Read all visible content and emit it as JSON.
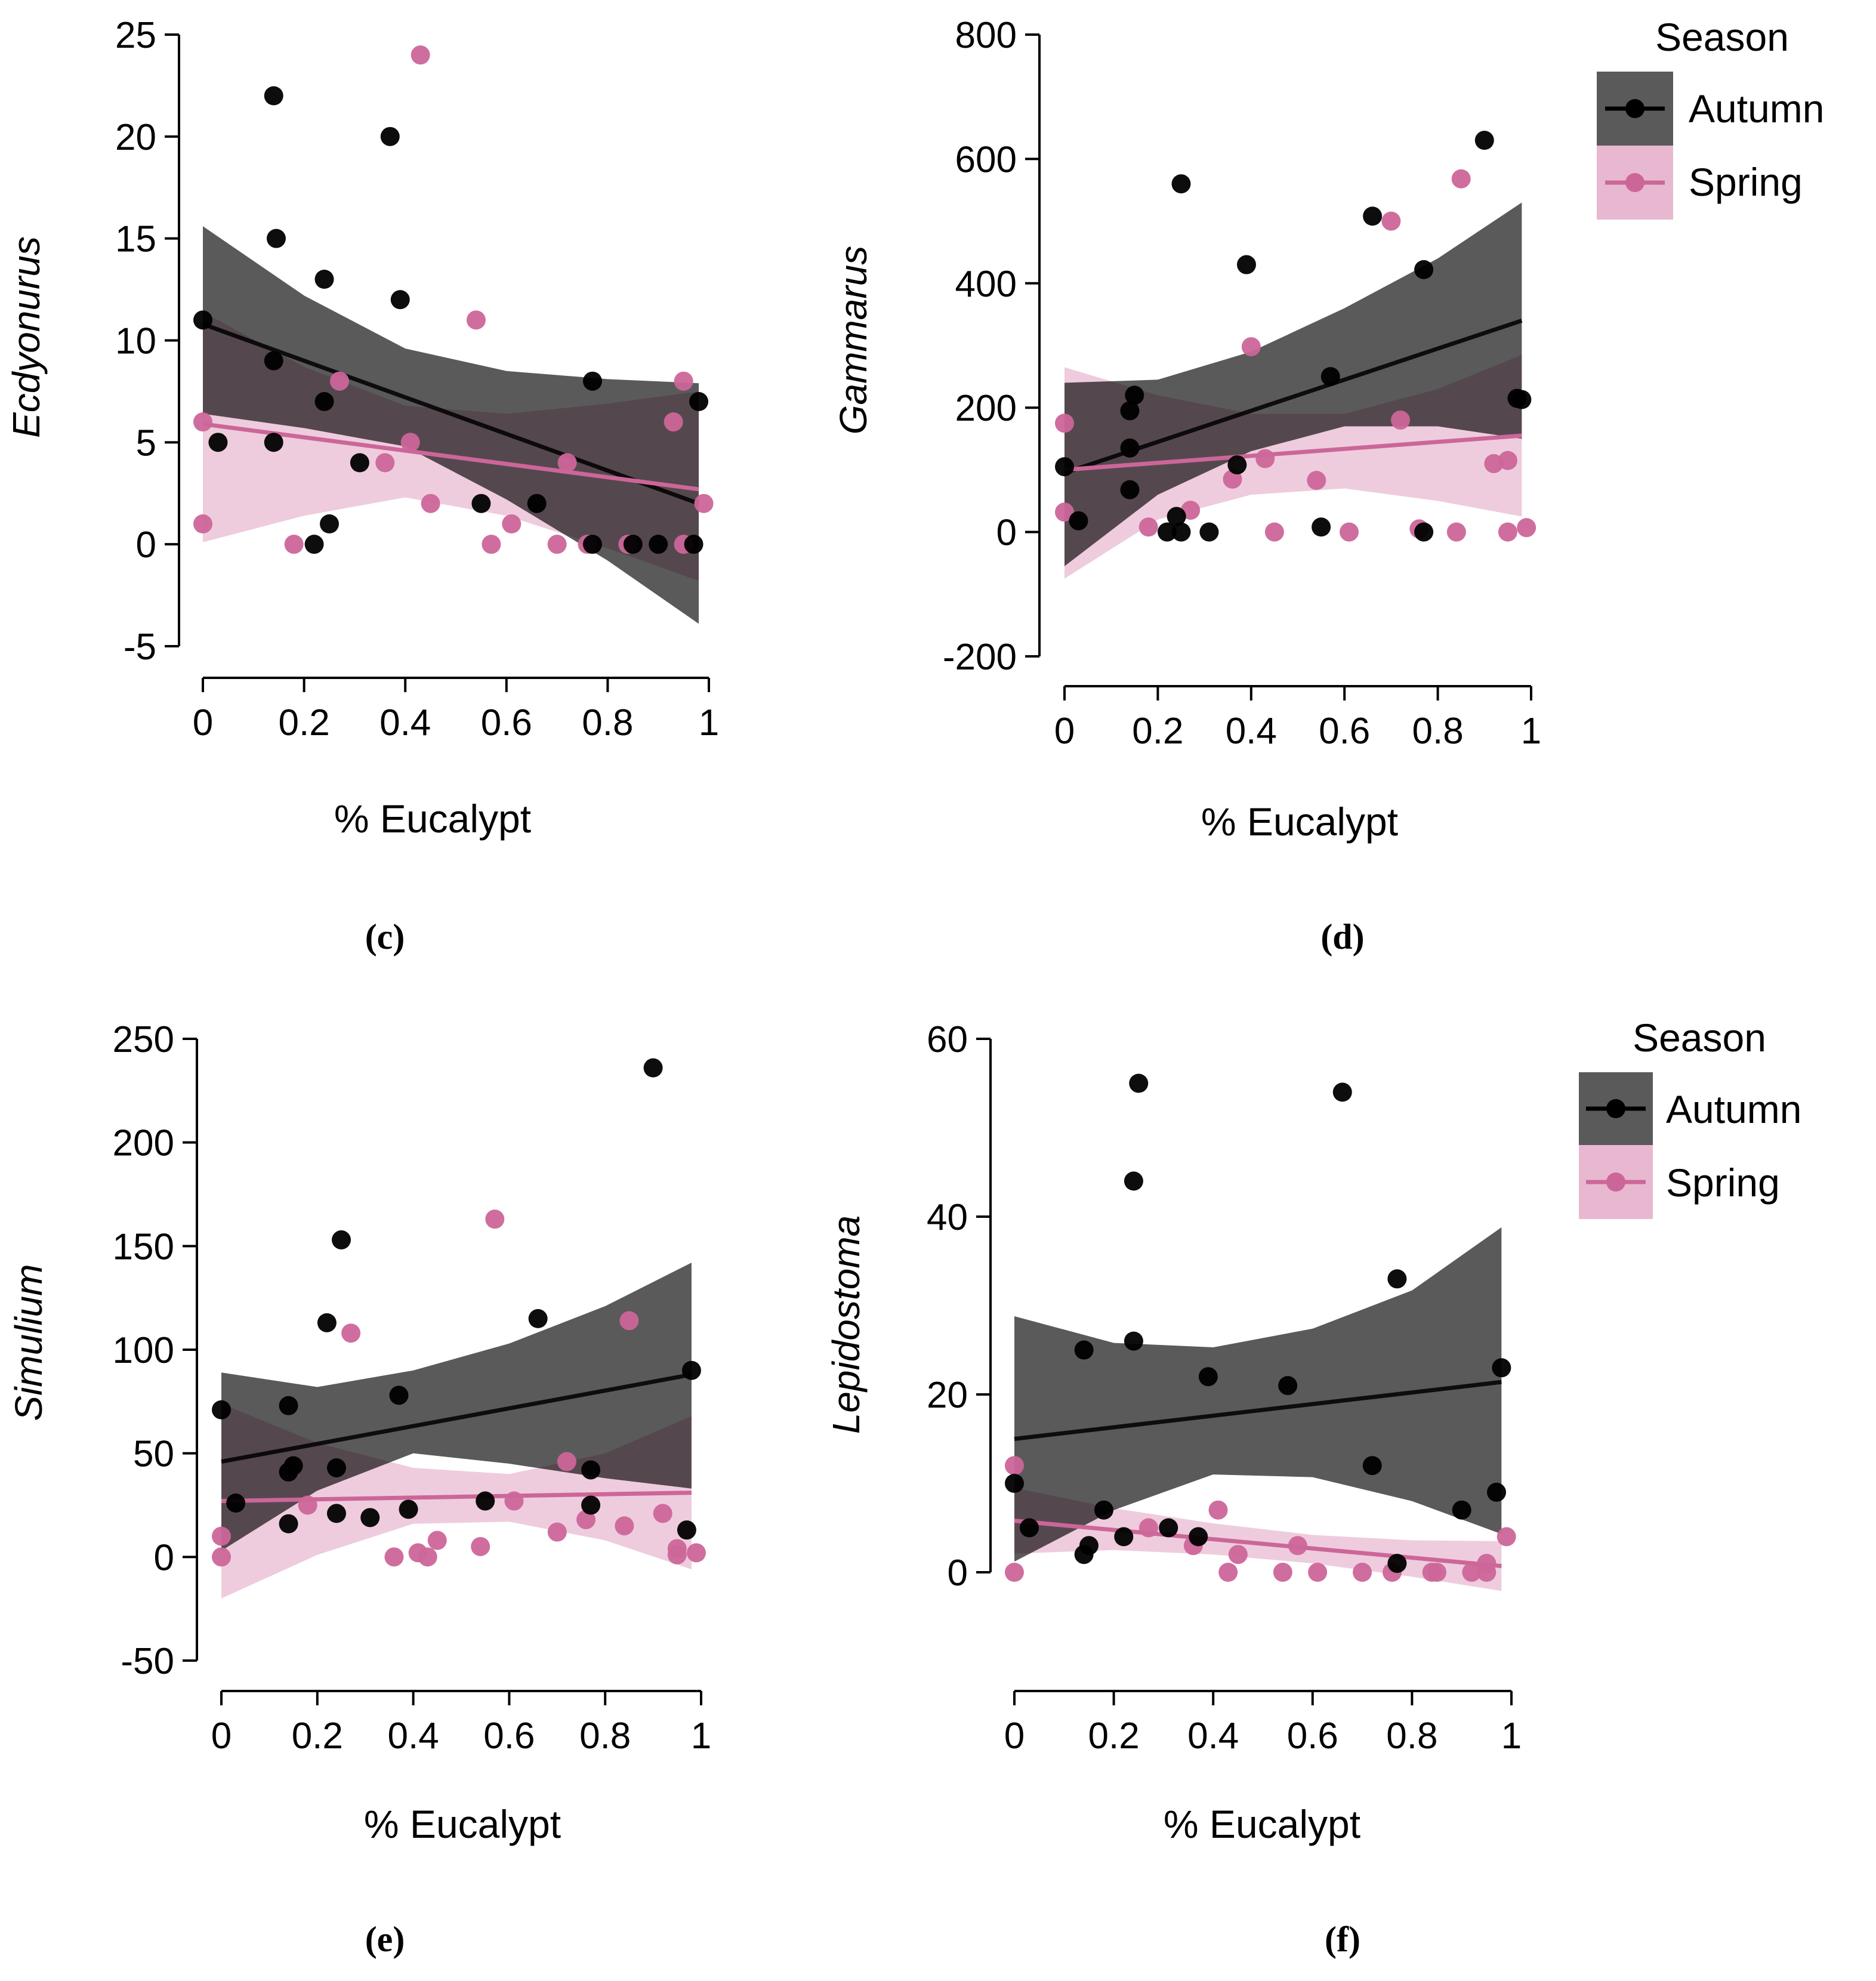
{
  "figure": {
    "background": "#ffffff"
  },
  "colors": {
    "autumn": "#000000",
    "spring": "#cc6699",
    "autumn_band": "#5a5a5a",
    "spring_band": "#e8b8d0",
    "axis": "#000000"
  },
  "legend": {
    "title": "Season",
    "entries": [
      {
        "label": "Autumn",
        "series": "autumn"
      },
      {
        "label": "Spring",
        "series": "spring"
      }
    ]
  },
  "chart_data": [
    {
      "id": "c",
      "panel_label": "(c)",
      "type": "scatter",
      "ylabel": "Ecdyonurus",
      "xlabel": "% Eucalypt",
      "xlim": [
        0,
        1
      ],
      "ylim": [
        -5,
        25
      ],
      "xticks": [
        "0",
        "0.2",
        "0.4",
        "0.6",
        "0.8",
        "1"
      ],
      "yticks": [
        "-5",
        "0",
        "5",
        "10",
        "15",
        "20",
        "25"
      ],
      "series": [
        {
          "key": "autumn",
          "name": "Autumn",
          "points": [
            [
              0.0,
              11
            ],
            [
              0.03,
              5
            ],
            [
              0.14,
              22
            ],
            [
              0.145,
              15
            ],
            [
              0.14,
              9
            ],
            [
              0.14,
              5
            ],
            [
              0.22,
              0
            ],
            [
              0.24,
              13
            ],
            [
              0.24,
              7
            ],
            [
              0.25,
              1
            ],
            [
              0.31,
              4
            ],
            [
              0.37,
              20
            ],
            [
              0.39,
              12
            ],
            [
              0.55,
              2
            ],
            [
              0.66,
              2
            ],
            [
              0.77,
              8
            ],
            [
              0.77,
              0
            ],
            [
              0.85,
              0
            ],
            [
              0.9,
              0
            ],
            [
              0.97,
              0
            ],
            [
              0.98,
              7
            ]
          ],
          "fit": [
            [
              0,
              10.8
            ],
            [
              0.98,
              2
            ]
          ],
          "band": [
            [
              0,
              15.6,
              6.4
            ],
            [
              0.2,
              12.2,
              5.7
            ],
            [
              0.4,
              9.6,
              4.8
            ],
            [
              0.6,
              8.5,
              2.2
            ],
            [
              0.8,
              8.1,
              -0.8
            ],
            [
              0.98,
              7.9,
              -3.9
            ]
          ]
        },
        {
          "key": "spring",
          "name": "Spring",
          "points": [
            [
              0.0,
              6
            ],
            [
              0.0,
              1
            ],
            [
              0.18,
              0
            ],
            [
              0.27,
              8
            ],
            [
              0.36,
              4
            ],
            [
              0.41,
              5
            ],
            [
              0.45,
              2
            ],
            [
              0.54,
              11
            ],
            [
              0.57,
              0
            ],
            [
              0.61,
              1
            ],
            [
              0.7,
              0
            ],
            [
              0.72,
              4
            ],
            [
              0.76,
              0
            ],
            [
              0.84,
              0
            ],
            [
              0.93,
              6
            ],
            [
              0.95,
              8
            ],
            [
              0.95,
              0
            ],
            [
              0.99,
              2
            ],
            [
              0.43,
              24
            ]
          ],
          "fit": [
            [
              0,
              5.9
            ],
            [
              0.98,
              2.7
            ]
          ],
          "band": [
            [
              0,
              11.4,
              0.1
            ],
            [
              0.2,
              8.7,
              1.4
            ],
            [
              0.4,
              6.8,
              2.3
            ],
            [
              0.6,
              6.4,
              1.4
            ],
            [
              0.8,
              6.9,
              -0.2
            ],
            [
              0.98,
              7.5,
              -1.8
            ]
          ]
        }
      ]
    },
    {
      "id": "d",
      "panel_label": "(d)",
      "type": "scatter",
      "ylabel": "Gammarus",
      "xlabel": "% Eucalypt",
      "xlim": [
        0,
        1
      ],
      "ylim": [
        -200,
        800
      ],
      "xticks": [
        "0",
        "0.2",
        "0.4",
        "0.6",
        "0.8",
        "1"
      ],
      "yticks": [
        "-200",
        "0",
        "200",
        "400",
        "600",
        "800"
      ],
      "series": [
        {
          "key": "autumn",
          "name": "Autumn",
          "points": [
            [
              0.0,
              105
            ],
            [
              0.03,
              18
            ],
            [
              0.14,
              195
            ],
            [
              0.14,
              135
            ],
            [
              0.14,
              68
            ],
            [
              0.15,
              220
            ],
            [
              0.22,
              0
            ],
            [
              0.24,
              25
            ],
            [
              0.25,
              0
            ],
            [
              0.25,
              560
            ],
            [
              0.31,
              0
            ],
            [
              0.37,
              108
            ],
            [
              0.39,
              430
            ],
            [
              0.55,
              8
            ],
            [
              0.57,
              250
            ],
            [
              0.66,
              508
            ],
            [
              0.77,
              422
            ],
            [
              0.77,
              0
            ],
            [
              0.97,
              215
            ],
            [
              0.98,
              213
            ],
            [
              0.9,
              630
            ]
          ],
          "fit": [
            [
              0,
              95
            ],
            [
              0.98,
              340
            ]
          ],
          "band": [
            [
              0,
              240,
              -55
            ],
            [
              0.2,
              245,
              60
            ],
            [
              0.4,
              290,
              130
            ],
            [
              0.6,
              360,
              170
            ],
            [
              0.8,
              440,
              170
            ],
            [
              0.98,
              530,
              150
            ]
          ]
        },
        {
          "key": "spring",
          "name": "Spring",
          "points": [
            [
              0.0,
              175
            ],
            [
              0.0,
              32
            ],
            [
              0.18,
              8
            ],
            [
              0.27,
              35
            ],
            [
              0.36,
              85
            ],
            [
              0.43,
              118
            ],
            [
              0.45,
              0
            ],
            [
              0.54,
              83
            ],
            [
              0.61,
              0
            ],
            [
              0.7,
              500
            ],
            [
              0.72,
              180
            ],
            [
              0.76,
              5
            ],
            [
              0.84,
              0
            ],
            [
              0.85,
              568
            ],
            [
              0.92,
              110
            ],
            [
              0.95,
              115
            ],
            [
              0.95,
              0
            ],
            [
              0.99,
              7
            ],
            [
              0.4,
              298
            ]
          ],
          "fit": [
            [
              0,
              100
            ],
            [
              0.98,
              155
            ]
          ],
          "band": [
            [
              0,
              265,
              -75
            ],
            [
              0.2,
              220,
              20
            ],
            [
              0.4,
              190,
              60
            ],
            [
              0.6,
              190,
              70
            ],
            [
              0.8,
              230,
              50
            ],
            [
              0.98,
              285,
              25
            ]
          ]
        }
      ]
    },
    {
      "id": "e",
      "panel_label": "(e)",
      "type": "scatter",
      "ylabel": "Simulium",
      "xlabel": "% Eucalypt",
      "xlim": [
        0,
        1
      ],
      "ylim": [
        -50,
        250
      ],
      "xticks": [
        "0",
        "0.2",
        "0.4",
        "0.6",
        "0.8",
        "1"
      ],
      "yticks": [
        "-50",
        "0",
        "50",
        "100",
        "150",
        "200",
        "250"
      ],
      "series": [
        {
          "key": "autumn",
          "name": "Autumn",
          "points": [
            [
              0.0,
              71
            ],
            [
              0.03,
              26
            ],
            [
              0.14,
              73
            ],
            [
              0.14,
              41
            ],
            [
              0.15,
              44
            ],
            [
              0.14,
              16
            ],
            [
              0.22,
              113
            ],
            [
              0.24,
              43
            ],
            [
              0.24,
              21
            ],
            [
              0.25,
              153
            ],
            [
              0.31,
              19
            ],
            [
              0.37,
              78
            ],
            [
              0.39,
              23
            ],
            [
              0.55,
              27
            ],
            [
              0.66,
              115
            ],
            [
              0.77,
              42
            ],
            [
              0.77,
              25
            ],
            [
              0.9,
              236
            ],
            [
              0.97,
              13
            ],
            [
              0.98,
              90
            ]
          ],
          "fit": [
            [
              0,
              46
            ],
            [
              0.98,
              88
            ]
          ],
          "band": [
            [
              0,
              89,
              3
            ],
            [
              0.2,
              82,
              32
            ],
            [
              0.4,
              90,
              50
            ],
            [
              0.6,
              103,
              45
            ],
            [
              0.8,
              121,
              38
            ],
            [
              0.98,
              142,
              33
            ]
          ]
        },
        {
          "key": "spring",
          "name": "Spring",
          "points": [
            [
              0.0,
              10
            ],
            [
              0.0,
              0
            ],
            [
              0.18,
              25
            ],
            [
              0.27,
              108
            ],
            [
              0.36,
              0
            ],
            [
              0.41,
              2
            ],
            [
              0.43,
              0
            ],
            [
              0.45,
              8
            ],
            [
              0.54,
              5
            ],
            [
              0.57,
              163
            ],
            [
              0.61,
              27
            ],
            [
              0.7,
              12
            ],
            [
              0.72,
              46
            ],
            [
              0.76,
              18
            ],
            [
              0.84,
              15
            ],
            [
              0.85,
              114
            ],
            [
              0.92,
              21
            ],
            [
              0.95,
              4
            ],
            [
              0.95,
              1
            ],
            [
              0.99,
              2
            ]
          ],
          "fit": [
            [
              0,
              27
            ],
            [
              0.98,
              31
            ]
          ],
          "band": [
            [
              0,
              74,
              -20
            ],
            [
              0.2,
              55,
              1
            ],
            [
              0.4,
              43,
              16
            ],
            [
              0.6,
              40,
              17
            ],
            [
              0.8,
              50,
              8
            ],
            [
              0.98,
              68,
              -6
            ]
          ]
        }
      ]
    },
    {
      "id": "f",
      "panel_label": "(f)",
      "type": "scatter",
      "ylabel": "Lepidostoma",
      "xlabel": "% Eucalypt",
      "xlim": [
        0,
        1
      ],
      "ylim": [
        0,
        60
      ],
      "xticks": [
        "0",
        "0.2",
        "0.4",
        "0.6",
        "0.8",
        "1"
      ],
      "yticks": [
        "0",
        "20",
        "40",
        "60"
      ],
      "series": [
        {
          "key": "autumn",
          "name": "Autumn",
          "points": [
            [
              0.0,
              10
            ],
            [
              0.03,
              5
            ],
            [
              0.14,
              25
            ],
            [
              0.14,
              2
            ],
            [
              0.15,
              3
            ],
            [
              0.18,
              7
            ],
            [
              0.22,
              4
            ],
            [
              0.24,
              44
            ],
            [
              0.24,
              26
            ],
            [
              0.25,
              55
            ],
            [
              0.31,
              5
            ],
            [
              0.37,
              4
            ],
            [
              0.39,
              22
            ],
            [
              0.55,
              21
            ],
            [
              0.66,
              54
            ],
            [
              0.72,
              12
            ],
            [
              0.77,
              33
            ],
            [
              0.77,
              1
            ],
            [
              0.9,
              7
            ],
            [
              0.97,
              9
            ],
            [
              0.98,
              23
            ]
          ],
          "fit": [
            [
              0,
              15
            ],
            [
              0.98,
              21.4
            ]
          ],
          "band": [
            [
              0,
              28.8,
              1.2
            ],
            [
              0.2,
              25.8,
              7.0
            ],
            [
              0.4,
              25.3,
              11.0
            ],
            [
              0.6,
              27.4,
              10.7
            ],
            [
              0.8,
              31.7,
              8.0
            ],
            [
              0.98,
              38.8,
              4.3
            ]
          ]
        },
        {
          "key": "spring",
          "name": "Spring",
          "points": [
            [
              0.0,
              12
            ],
            [
              0.0,
              0
            ],
            [
              0.27,
              5
            ],
            [
              0.36,
              3
            ],
            [
              0.41,
              7
            ],
            [
              0.43,
              0
            ],
            [
              0.45,
              2
            ],
            [
              0.54,
              0
            ],
            [
              0.57,
              3
            ],
            [
              0.61,
              0
            ],
            [
              0.7,
              0
            ],
            [
              0.76,
              0
            ],
            [
              0.84,
              0
            ],
            [
              0.85,
              0
            ],
            [
              0.92,
              0
            ],
            [
              0.95,
              1
            ],
            [
              0.95,
              0
            ],
            [
              0.99,
              4
            ]
          ],
          "fit": [
            [
              0,
              5.8
            ],
            [
              0.98,
              0.7
            ]
          ],
          "band": [
            [
              0,
              9.5,
              2.1
            ],
            [
              0.2,
              7.2,
              2.5
            ],
            [
              0.4,
              5.5,
              2.0
            ],
            [
              0.6,
              4.2,
              1.0
            ],
            [
              0.8,
              3.6,
              -0.5
            ],
            [
              0.98,
              3.5,
              -2.1
            ]
          ]
        }
      ]
    }
  ]
}
